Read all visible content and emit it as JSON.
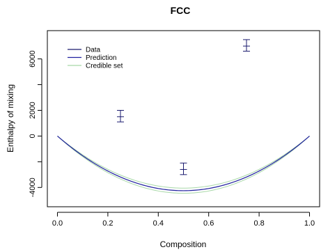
{
  "chart_data": {
    "type": "line",
    "title": "FCC",
    "xlabel": "Composition",
    "ylabel": "Enthalpy of mixing",
    "xlim": [
      -0.04,
      1.04
    ],
    "ylim": [
      -5500,
      8200
    ],
    "x_ticks": [
      0.0,
      0.2,
      0.4,
      0.6,
      0.8,
      1.0
    ],
    "x_tick_labels": [
      "0.0",
      "0.2",
      "0.4",
      "0.6",
      "0.8",
      "1.0"
    ],
    "y_ticks": [
      -4000,
      0,
      2000,
      6000
    ],
    "y_tick_labels": [
      "-4000",
      "0",
      "2000",
      "6000"
    ],
    "y_ticks_unlabeled": [
      -2000,
      4000
    ],
    "legend": {
      "position": "top-left",
      "entries": [
        {
          "label": "Data",
          "color": "#1a1a6e"
        },
        {
          "label": "Prediction",
          "color": "#2020a0"
        },
        {
          "label": "Credible set",
          "color": "#a8d8a8"
        }
      ]
    },
    "data_points": [
      {
        "x": 0.25,
        "y": 1500,
        "ymin": 1100,
        "ymax": 2000
      },
      {
        "x": 0.5,
        "y": -2600,
        "ymin": -3000,
        "ymax": -2100
      },
      {
        "x": 0.75,
        "y": 7000,
        "ymin": 6600,
        "ymax": 7500
      }
    ],
    "prediction": {
      "a": -17000,
      "description": "quadratic a*x*(1-x)"
    },
    "credible_set": {
      "lower_a": -17800,
      "upper_a": -16200
    },
    "colors": {
      "data": "#1a1a6e",
      "prediction": "#2020a0",
      "credible": "#a8d8a8",
      "axis": "#000000"
    }
  }
}
